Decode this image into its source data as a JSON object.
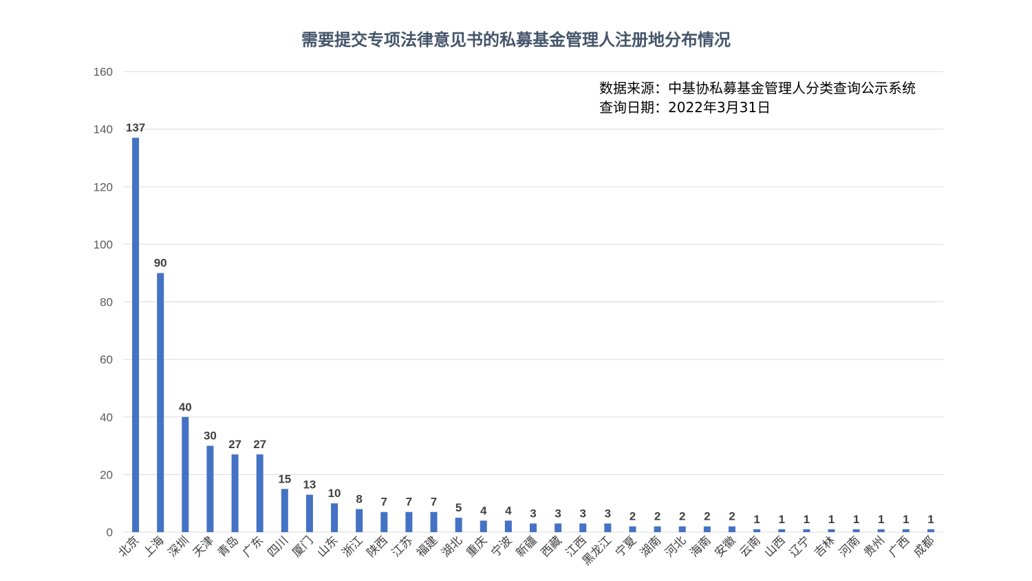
{
  "title": "需要提交专项法律意见书的私募基金管理人注册地分布情况",
  "source_note": {
    "line1": "数据来源：中基协私募基金管理人分类查询公示系统",
    "line2": "查询日期：2022年3月31日"
  },
  "colors": {
    "bar": "#4472c4",
    "grid": "#d9d9d9",
    "tick_text": "#595959",
    "label_text": "#404040",
    "title": "#44546a"
  },
  "chart_data": {
    "type": "bar",
    "title": "需要提交专项法律意见书的私募基金管理人注册地分布情况",
    "xlabel": "",
    "ylabel": "",
    "ylim": [
      0,
      160
    ],
    "yticks": [
      0,
      20,
      40,
      60,
      80,
      100,
      120,
      140,
      160
    ],
    "grid": true,
    "data_labels": true,
    "categories": [
      "北京",
      "上海",
      "深圳",
      "天津",
      "青岛",
      "广东",
      "四川",
      "厦门",
      "山东",
      "浙江",
      "陕西",
      "江苏",
      "福建",
      "湖北",
      "重庆",
      "宁波",
      "新疆",
      "西藏",
      "江西",
      "黑龙江",
      "宁夏",
      "湖南",
      "河北",
      "海南",
      "安徽",
      "云南",
      "山西",
      "辽宁",
      "吉林",
      "河南",
      "贵州",
      "广西",
      "成都"
    ],
    "values": [
      137,
      90,
      40,
      30,
      27,
      27,
      15,
      13,
      10,
      8,
      7,
      7,
      7,
      5,
      4,
      4,
      3,
      3,
      3,
      3,
      2,
      2,
      2,
      2,
      2,
      1,
      1,
      1,
      1,
      1,
      1,
      1,
      1
    ]
  }
}
